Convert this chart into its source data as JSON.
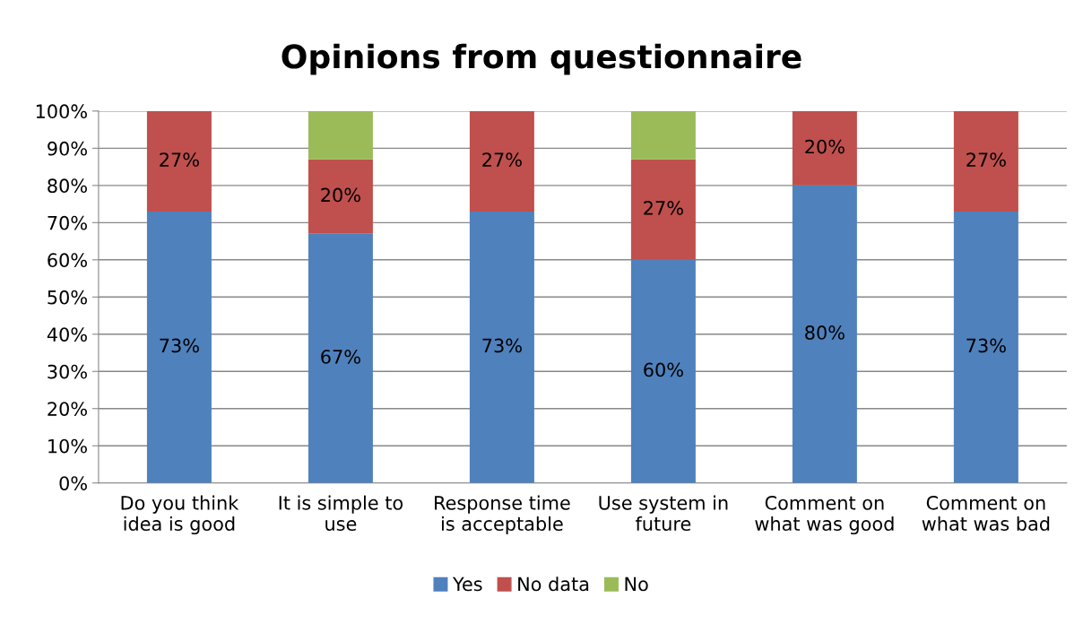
{
  "chart_data": {
    "type": "bar",
    "title": "Opinions from questionnaire",
    "stacked": true,
    "categories": [
      "Do you think\nidea is good",
      "It is simple to\nuse",
      "Response time\nis acceptable",
      "Use system in\nfuture",
      "Comment on\nwhat was good",
      "Comment on\nwhat was bad"
    ],
    "series": [
      {
        "name": "Yes",
        "color": "#4f81bd",
        "values": [
          73,
          67,
          73,
          60,
          80,
          73
        ],
        "value_labels": [
          "73%",
          "67%",
          "73%",
          "60%",
          "80%",
          "73%"
        ]
      },
      {
        "name": "No data",
        "color": "#c0504d",
        "values": [
          27,
          20,
          27,
          27,
          20,
          27
        ],
        "value_labels": [
          "27%",
          "20%",
          "27%",
          "27%",
          "20%",
          "27%"
        ]
      },
      {
        "name": "No",
        "color": "#9bbb59",
        "values": [
          null,
          13,
          null,
          13,
          null,
          null
        ]
      }
    ],
    "ylim": [
      0,
      100
    ],
    "yticks": [
      {
        "value": 0,
        "label": "0%"
      },
      {
        "value": 10,
        "label": "10%"
      },
      {
        "value": 20,
        "label": "20%"
      },
      {
        "value": 30,
        "label": "30%"
      },
      {
        "value": 40,
        "label": "40%"
      },
      {
        "value": 50,
        "label": "50%"
      },
      {
        "value": 60,
        "label": "60%"
      },
      {
        "value": 70,
        "label": "70%"
      },
      {
        "value": 80,
        "label": "80%"
      },
      {
        "value": 90,
        "label": "90%"
      },
      {
        "value": 100,
        "label": "100%"
      }
    ],
    "grid": "y",
    "legend": "bottom"
  }
}
